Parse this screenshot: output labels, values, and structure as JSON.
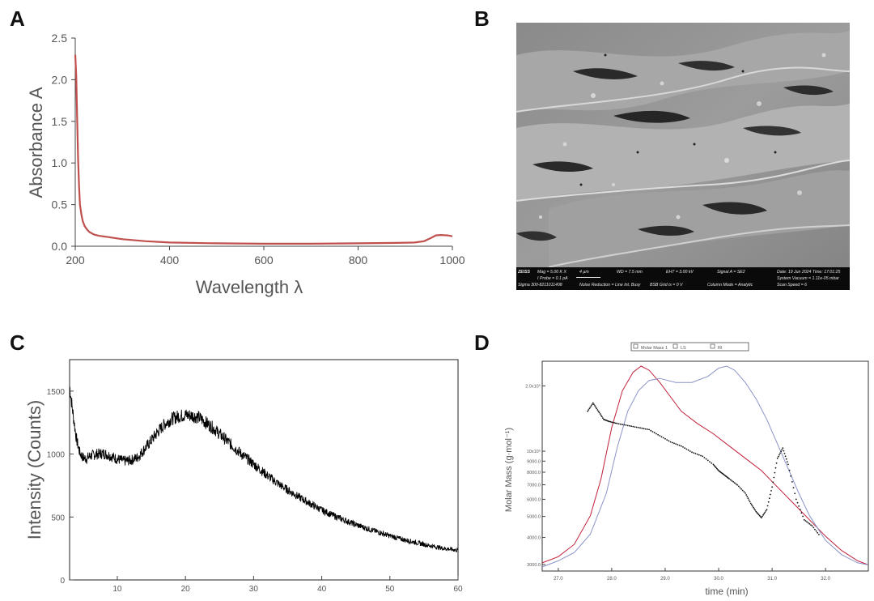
{
  "panels": {
    "a": "A",
    "b": "B",
    "c": "C",
    "d": "D"
  },
  "sem": {
    "line1_a": "Mag =   5.00 K X",
    "line1_b": "4 µm",
    "line1_c": "WD =   7.5 mm",
    "line1_d": "EHT =  3.00 kV",
    "line1_e": "Signal A = SE2",
    "line1_f": "Date: 19 Jun 2024   Time: 17:01:25",
    "line2_a": "I Probe =   0.1 pA",
    "line2_b": "System Vacuum = 1.11e-05 mbar",
    "line3_a": "Sigma 300-8211011408",
    "line3_b": "Noise Reduction = Line Int. Busy",
    "line3_c": "BSB Grid is =    0 V",
    "line3_d": "Column Mode = Analytic",
    "line3_e": "Scan Speed = 6",
    "logo": "ZEISS"
  },
  "chart_data": [
    {
      "panel": "A",
      "type": "line",
      "xlabel": "Wavelength λ",
      "ylabel": "Absorbance A",
      "xlim": [
        200,
        1000
      ],
      "ylim": [
        0,
        2.5
      ],
      "xticks": [
        "200",
        "400",
        "600",
        "800",
        "1000"
      ],
      "yticks": [
        "0.0",
        "0.5",
        "1.0",
        "1.5",
        "2.0",
        "2.5"
      ],
      "series": [
        {
          "name": "absorbance",
          "color": "#c0504d",
          "x": [
            200,
            202,
            204,
            206,
            208,
            210,
            213,
            216,
            220,
            225,
            230,
            240,
            250,
            270,
            300,
            350,
            400,
            500,
            600,
            700,
            800,
            880,
            920,
            940,
            955,
            965,
            975,
            990,
            1000
          ],
          "y": [
            2.3,
            2.05,
            1.55,
            1.05,
            0.72,
            0.5,
            0.38,
            0.3,
            0.24,
            0.2,
            0.17,
            0.14,
            0.125,
            0.11,
            0.085,
            0.06,
            0.045,
            0.035,
            0.03,
            0.03,
            0.035,
            0.04,
            0.045,
            0.06,
            0.1,
            0.13,
            0.135,
            0.13,
            0.12
          ]
        }
      ]
    },
    {
      "panel": "C",
      "type": "line",
      "xlabel": "",
      "ylabel": "Intensity (Counts)",
      "xlim": [
        3,
        60
      ],
      "ylim": [
        0,
        1750
      ],
      "xticks": [
        "10",
        "20",
        "30",
        "40",
        "50",
        "60"
      ],
      "yticks": [
        "0",
        "500",
        "1000",
        "1500"
      ],
      "series": [
        {
          "name": "XRD",
          "color": "#000000",
          "x": [
            3,
            3.5,
            4,
            4.5,
            5,
            5.5,
            6,
            7,
            8,
            9,
            10,
            11,
            12,
            13,
            14,
            15,
            16,
            17,
            18,
            19,
            20,
            21,
            22,
            23,
            24,
            25,
            26,
            27,
            28,
            30,
            32,
            34,
            36,
            38,
            40,
            42,
            44,
            46,
            48,
            50,
            52,
            54,
            56,
            58,
            60
          ],
          "y": [
            1540,
            1320,
            1120,
            1010,
            970,
            965,
            985,
            1000,
            1005,
            985,
            960,
            945,
            950,
            975,
            1040,
            1110,
            1180,
            1240,
            1280,
            1300,
            1310,
            1305,
            1290,
            1250,
            1210,
            1160,
            1110,
            1060,
            1010,
            920,
            830,
            750,
            680,
            615,
            555,
            505,
            460,
            420,
            385,
            350,
            320,
            295,
            270,
            250,
            235
          ]
        }
      ]
    },
    {
      "panel": "D",
      "type": "line",
      "xlabel": "time (min)",
      "ylabel": "Molar Mass (g·mol⁻¹)",
      "xlim": [
        26.7,
        32.8
      ],
      "ylim": [
        28000,
        260000
      ],
      "xticks": [
        "27.0",
        "28.0",
        "29.0",
        "30.0",
        "31.0",
        "32.0"
      ],
      "yticks": [
        "3000.0",
        "4000.0",
        "5000.0",
        "6000.0",
        "7000.0",
        "8000.0",
        "9000.0",
        "10x10⁵",
        "2.0x10⁵"
      ],
      "legend": [
        "Molar Mass 1",
        "LS",
        "RI"
      ],
      "series": [
        {
          "name": "LS",
          "color": "#c0203a",
          "x": [
            26.7,
            27.0,
            27.3,
            27.6,
            27.8,
            28.0,
            28.2,
            28.4,
            28.55,
            28.7,
            28.9,
            29.1,
            29.3,
            29.6,
            29.9,
            30.2,
            30.5,
            30.8,
            31.1,
            31.4,
            31.7,
            32.0,
            32.3,
            32.6,
            32.8
          ],
          "y": [
            0.04,
            0.07,
            0.13,
            0.27,
            0.45,
            0.7,
            0.88,
            0.97,
            1.0,
            0.98,
            0.92,
            0.85,
            0.78,
            0.72,
            0.67,
            0.61,
            0.55,
            0.49,
            0.41,
            0.33,
            0.25,
            0.17,
            0.1,
            0.05,
            0.03
          ]
        },
        {
          "name": "RI",
          "color": "#8a93c9",
          "x": [
            26.7,
            27.0,
            27.3,
            27.6,
            27.9,
            28.1,
            28.3,
            28.5,
            28.7,
            28.9,
            29.2,
            29.5,
            29.8,
            30.0,
            30.15,
            30.3,
            30.5,
            30.7,
            30.9,
            31.1,
            31.3,
            31.5,
            31.7,
            32.0,
            32.3,
            32.6,
            32.8
          ],
          "y": [
            0.02,
            0.05,
            0.09,
            0.18,
            0.38,
            0.6,
            0.78,
            0.88,
            0.93,
            0.94,
            0.92,
            0.92,
            0.95,
            0.99,
            1.0,
            0.98,
            0.92,
            0.84,
            0.74,
            0.62,
            0.5,
            0.38,
            0.27,
            0.15,
            0.08,
            0.04,
            0.03
          ]
        },
        {
          "name": "Molar Mass 1",
          "color": "#111111",
          "x": [
            27.55,
            27.65,
            27.75,
            27.85,
            27.95,
            28.1,
            28.3,
            28.5,
            28.7,
            28.9,
            29.1,
            29.3,
            29.5,
            29.7,
            29.9,
            30.0,
            30.1,
            30.2,
            30.35,
            30.5,
            30.6,
            30.7,
            30.8,
            30.9,
            31.0,
            31.1,
            31.2,
            31.3,
            31.45,
            31.6,
            31.75,
            31.9
          ],
          "y": [
            0.78,
            0.82,
            0.78,
            0.74,
            0.73,
            0.72,
            0.71,
            0.7,
            0.69,
            0.66,
            0.63,
            0.61,
            0.58,
            0.56,
            0.52,
            0.49,
            0.47,
            0.45,
            0.42,
            0.38,
            0.33,
            0.29,
            0.26,
            0.3,
            0.41,
            0.55,
            0.6,
            0.52,
            0.35,
            0.25,
            0.22,
            0.17
          ]
        }
      ]
    }
  ]
}
